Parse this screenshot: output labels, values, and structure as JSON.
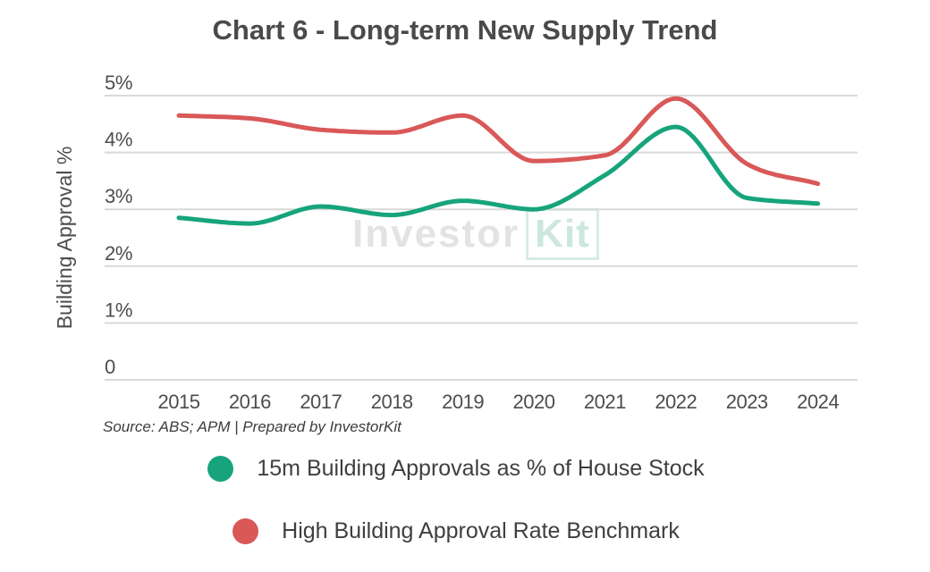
{
  "title": "Chart 6 - Long-term New Supply Trend",
  "source_note": "Source: ABS; APM | Prepared by InvestorKit",
  "watermark": {
    "part1": "Investor",
    "part2": "Kit"
  },
  "colors": {
    "green": "#17a47c",
    "red": "#d95858",
    "grid": "#d9d9d9",
    "axis_text": "#4d4d4d",
    "title_text": "#4a4a4a",
    "watermark_gray": "#e3e3e3",
    "watermark_teal": "#cbe7df"
  },
  "legend": [
    {
      "label": "15m Building Approvals as % of House Stock",
      "color": "#17a47c"
    },
    {
      "label": "High Building Approval Rate Benchmark",
      "color": "#d95858"
    }
  ],
  "chart_data": {
    "type": "line",
    "title": "Chart 6 - Long-term New Supply Trend",
    "xlabel": "",
    "ylabel": "Building Approval %",
    "categories": [
      "2015",
      "2016",
      "2017",
      "2018",
      "2019",
      "2020",
      "2021",
      "2022",
      "2023",
      "2024"
    ],
    "ylim": [
      0,
      5
    ],
    "grid": true,
    "legend_position": "bottom",
    "y_ticks": [
      {
        "value": 0,
        "label": "0"
      },
      {
        "value": 1,
        "label": "1%"
      },
      {
        "value": 2,
        "label": "2%"
      },
      {
        "value": 3,
        "label": "3%"
      },
      {
        "value": 4,
        "label": "4%"
      },
      {
        "value": 5,
        "label": "5%"
      }
    ],
    "series": [
      {
        "name": "15m Building Approvals as % of House Stock",
        "color": "#17a47c",
        "values": [
          2.85,
          2.75,
          3.05,
          2.9,
          3.15,
          3.0,
          3.6,
          4.45,
          3.2,
          3.1
        ]
      },
      {
        "name": "High Building Approval Rate Benchmark",
        "color": "#d95858",
        "values": [
          4.65,
          4.6,
          4.4,
          4.35,
          4.65,
          3.85,
          3.95,
          4.95,
          3.8,
          3.45
        ]
      }
    ]
  }
}
